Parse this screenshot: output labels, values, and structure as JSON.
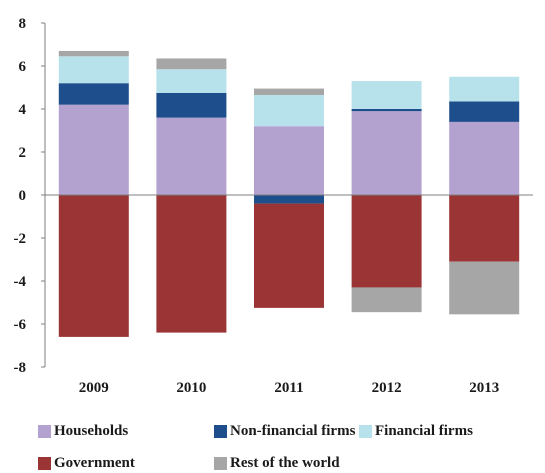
{
  "chart_data": {
    "type": "bar",
    "stacked": true,
    "categories": [
      "2009",
      "2010",
      "2011",
      "2012",
      "2013"
    ],
    "series": [
      {
        "name": "Households",
        "color": "#b3a2cf",
        "values": [
          4.2,
          3.6,
          3.2,
          3.9,
          3.4
        ]
      },
      {
        "name": "Non-financial firms",
        "color": "#1f4e8c",
        "values": [
          1.0,
          1.15,
          -0.4,
          0.1,
          0.95
        ]
      },
      {
        "name": "Financial firms",
        "color": "#b7e2ec",
        "values": [
          1.25,
          1.1,
          1.45,
          1.3,
          1.15
        ]
      },
      {
        "name": "Government",
        "color": "#9b3535",
        "values": [
          -6.6,
          -6.4,
          -4.85,
          -4.3,
          -3.1
        ]
      },
      {
        "name": "Rest of the world",
        "color": "#a6a6a6",
        "values": [
          0.25,
          0.5,
          0.3,
          -1.15,
          -2.45
        ]
      }
    ],
    "ylim": [
      -8,
      8
    ],
    "yticks": [
      "8",
      "6",
      "4",
      "2",
      "0",
      "-2",
      "-4",
      "-6",
      "-8"
    ],
    "title": "",
    "xlabel": "",
    "ylabel": "",
    "grid": false,
    "legend_position": "bottom"
  }
}
